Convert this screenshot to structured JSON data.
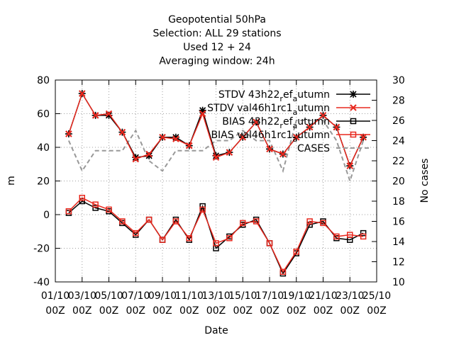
{
  "chart_data": {
    "type": "line",
    "title_lines": [
      "Geopotential 50hPa",
      "Selection: ALL      29 stations",
      "Used  12  + 24",
      "Averaging window: 24h"
    ],
    "xlabel": "Date",
    "ylabel_left": "m",
    "ylabel_right": "No cases",
    "ylim_left": [
      -40,
      80
    ],
    "ylim_right": [
      10,
      30
    ],
    "xlim": [
      1,
      25
    ],
    "grid": true,
    "legend_position": "top-right",
    "x_ticks": [
      {
        "x": 1,
        "line1": "01/10",
        "line2": "00Z"
      },
      {
        "x": 3,
        "line1": "03/10",
        "line2": "00Z"
      },
      {
        "x": 5,
        "line1": "05/10",
        "line2": "00Z"
      },
      {
        "x": 7,
        "line1": "07/10",
        "line2": "00Z"
      },
      {
        "x": 9,
        "line1": "09/10",
        "line2": "00Z"
      },
      {
        "x": 11,
        "line1": "11/10",
        "line2": "00Z"
      },
      {
        "x": 13,
        "line1": "13/10",
        "line2": "00Z"
      },
      {
        "x": 15,
        "line1": "15/10",
        "line2": "00Z"
      },
      {
        "x": 17,
        "line1": "17/10",
        "line2": "00Z"
      },
      {
        "x": 19,
        "line1": "19/10",
        "line2": "00Z"
      },
      {
        "x": 21,
        "line1": "21/10",
        "line2": "00Z"
      },
      {
        "x": 23,
        "line1": "23/10",
        "line2": "00Z"
      },
      {
        "x": 25,
        "line1": "25/10",
        "line2": "00Z"
      }
    ],
    "y_ticks_left": [
      "80",
      "60",
      "40",
      "20",
      "0",
      "-20",
      "-40"
    ],
    "y_ticks_right": [
      "30",
      "28",
      "26",
      "24",
      "22",
      "20",
      "18",
      "16",
      "14",
      "12",
      "10"
    ],
    "x": [
      2,
      3,
      4,
      5,
      6,
      7,
      8,
      9,
      10,
      11,
      12,
      13,
      14,
      15,
      16,
      17,
      18,
      19,
      20,
      21,
      22,
      23,
      24
    ],
    "series": [
      {
        "name": "STDV 43h22_ref_autumn",
        "axis": "left",
        "marker": "asterisk",
        "color": "#000000",
        "values": [
          48,
          72,
          59,
          59,
          49,
          34,
          35,
          46,
          46,
          41,
          62,
          35,
          37,
          46,
          55,
          39,
          36,
          46,
          52,
          59,
          52,
          29,
          46
        ]
      },
      {
        "name": "STDV val46h1rc1_autumn",
        "axis": "left",
        "marker": "cross",
        "color": "#e8281e",
        "values": [
          48,
          72,
          59,
          60,
          49,
          33,
          36,
          46,
          45,
          41,
          60,
          34,
          37,
          46,
          55,
          39,
          36,
          46,
          52,
          59,
          52,
          29,
          46
        ]
      },
      {
        "name": "BIAS 43h22_ref_autumn",
        "axis": "left",
        "marker": "square",
        "color": "#000000",
        "values": [
          1,
          8,
          4,
          2,
          -5,
          -12,
          -3,
          -15,
          -3,
          -15,
          5,
          -20,
          -13,
          -6,
          -3,
          -17,
          -35,
          -23,
          -6,
          -4,
          -14,
          -15,
          -11
        ]
      },
      {
        "name": "BIAS val46h1rc1_autumn",
        "axis": "left",
        "marker": "square",
        "color": "#e8281e",
        "values": [
          2,
          10,
          6,
          3,
          -4,
          -11,
          -3,
          -15,
          -4,
          -14,
          3,
          -17,
          -14,
          -5,
          -4,
          -17,
          -34,
          -22,
          -4,
          -5,
          -13,
          -12,
          -13
        ]
      },
      {
        "name": "CASES",
        "axis": "right",
        "marker": "none",
        "color": "#999999",
        "dash": true,
        "values": [
          24,
          21,
          23,
          23,
          23,
          25,
          22,
          21,
          23,
          23,
          23,
          24,
          24,
          25,
          24,
          24,
          21,
          26,
          26,
          26,
          24,
          20,
          24
        ]
      }
    ],
    "legend_display": [
      {
        "prefix": "STDV 43h22",
        "sub1": "r",
        "mid": "ef",
        "sub2": "a",
        "suffix": "utumn"
      },
      {
        "prefix": "STDV val46h1rc1",
        "sub1": "",
        "mid": "",
        "sub2": "a",
        "suffix": "utumn"
      },
      {
        "prefix": "BIAS 43h22",
        "sub1": "r",
        "mid": "ef",
        "sub2": "a",
        "suffix": "utumn"
      },
      {
        "prefix": "BIAS val46h1rc1",
        "sub1": "",
        "mid": "",
        "sub2": "a",
        "suffix": "utumn"
      },
      {
        "prefix": "CASES",
        "sub1": "",
        "mid": "",
        "sub2": "",
        "suffix": ""
      }
    ]
  }
}
